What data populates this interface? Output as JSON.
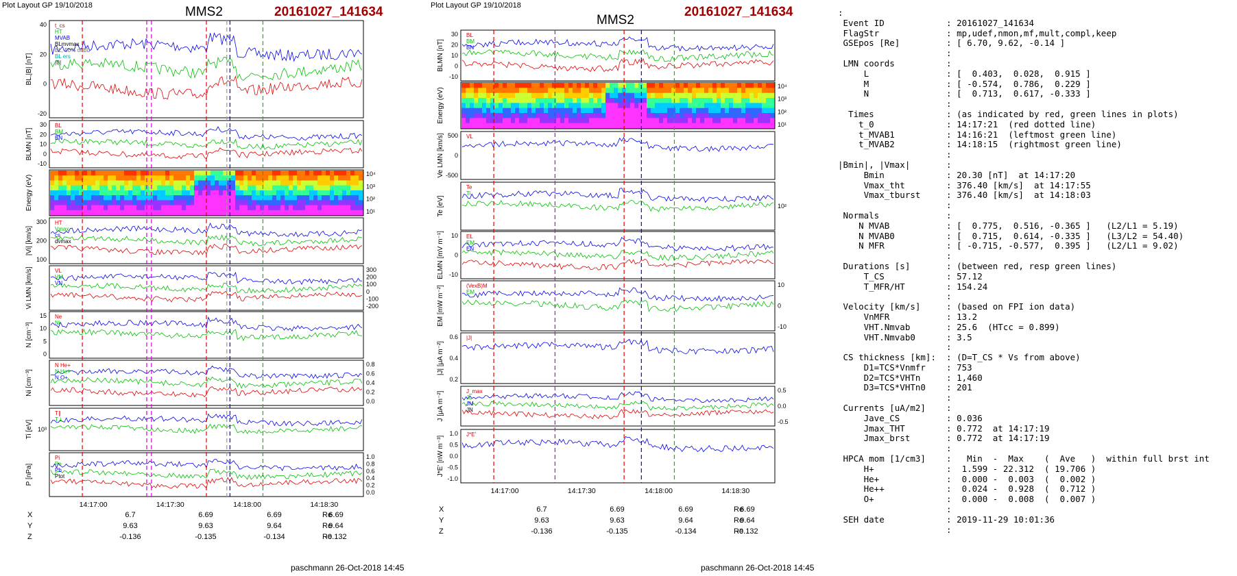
{
  "left": {
    "layout_label": "Plot Layout GP 19/10/2018",
    "spacecraft": "MMS2",
    "event": "20161027_141634",
    "footer": "paschmann 26-Oct-2018 14:45",
    "time_ticks": [
      "14:17:00",
      "14:17:30",
      "14:18:00",
      "14:18:30"
    ],
    "panels": [
      {
        "ylabel": "BL,|B| [nT]",
        "ticks_left": [
          "40",
          "20",
          "0",
          "-20"
        ],
        "legend": [
          "t_cs",
          "HT",
          "MVAB",
          "BLmvmax",
          "BL, 50% of BL",
          "BL ers",
          "|B|"
        ]
      },
      {
        "ylabel": "BLMN [nT]",
        "ticks_left": [
          "30",
          "20",
          "10",
          "0",
          "-10"
        ],
        "legend": [
          "BL",
          "BM",
          "BN"
        ]
      },
      {
        "ylabel": "Energy (eV)",
        "ticks_right": [
          "10⁴",
          "10³",
          "10²",
          "10¹"
        ]
      },
      {
        "ylabel": "|Vi| [km/s]",
        "ticks_left": [
          "300",
          "200",
          "100"
        ],
        "legend": [
          "HT",
          "Vmax",
          "cs",
          "dvmax"
        ]
      },
      {
        "ylabel": "Vi LMN [km/s]",
        "ticks_right": [
          "300",
          "200",
          "100",
          "0",
          "-100",
          "-200"
        ],
        "legend": [
          "VL",
          "VM",
          "VN"
        ]
      },
      {
        "ylabel": "N [cm⁻³]",
        "ticks_left": [
          "15",
          "10",
          "5",
          "0"
        ],
        "legend": [
          "Ne",
          "Ni"
        ]
      },
      {
        "ylabel": "Ni [cm⁻³]",
        "ticks_right": [
          "0.8",
          "0.6",
          "0.4",
          "0.2",
          "0.0"
        ],
        "legend": [
          "N He+",
          "N He+",
          "N O+"
        ]
      },
      {
        "ylabel": "Ti [eV]",
        "ticks_left": [
          "10³"
        ],
        "legend": [
          "T∥",
          "T⊥"
        ]
      },
      {
        "ylabel": "P [nPa]",
        "ticks_right": [
          "1.0",
          "0.8",
          "0.6",
          "0.4",
          "0.2",
          "0.0"
        ],
        "legend": [
          "Pi",
          "Pe",
          "Pb",
          "Ptot"
        ]
      }
    ],
    "pos": {
      "rows": [
        {
          "label": "X",
          "values": [
            "6.7",
            "6.69",
            "6.69",
            "6.69"
          ],
          "unit": "Re"
        },
        {
          "label": "Y",
          "values": [
            "9.63",
            "9.63",
            "9.64",
            "9.64"
          ],
          "unit": "Re"
        },
        {
          "label": "Z",
          "values": [
            "-0.136",
            "-0.135",
            "-0.134",
            "-0.132"
          ],
          "unit": "Re"
        }
      ]
    }
  },
  "middle": {
    "layout_label": "Plot Layout GP 19/10/2018",
    "spacecraft": "MMS2",
    "event": "20161027_141634",
    "footer": "paschmann 26-Oct-2018 14:45",
    "time_ticks": [
      "14:17:00",
      "14:17:30",
      "14:18:00",
      "14:18:30"
    ],
    "panels": [
      {
        "ylabel": "BLMN [nT]",
        "ticks_left": [
          "30",
          "20",
          "10",
          "0",
          "-10"
        ],
        "legend": [
          "BL",
          "BM",
          "BN"
        ]
      },
      {
        "ylabel": "Energy (eV)",
        "ticks_right": [
          "10⁴",
          "10³",
          "10²",
          "10¹"
        ]
      },
      {
        "ylabel": "Ve LMN [km/s]",
        "ticks_left": [
          "500",
          "0",
          "-500"
        ],
        "legend": [
          "VL"
        ]
      },
      {
        "ylabel": "Te [eV]",
        "ticks_right": [
          "10²"
        ],
        "legend": [
          "Te",
          "Ti"
        ]
      },
      {
        "ylabel": "ELMN [mV m⁻¹]",
        "ticks_left": [
          "10",
          "0",
          "-10"
        ],
        "legend": [
          "EL",
          "EM",
          "EN"
        ]
      },
      {
        "ylabel": "EM [mW m⁻²]",
        "ticks_right": [
          "10",
          "0",
          "-10"
        ],
        "legend": [
          "(VexB)M",
          "EM"
        ]
      },
      {
        "ylabel": "|J| [μA m⁻²]",
        "ticks_left": [
          "0.6",
          "0.4",
          "0.2"
        ],
        "legend": [
          "|J|"
        ]
      },
      {
        "ylabel": "J [μA m⁻²]",
        "ticks_right": [
          "0.5",
          "0.0",
          "-0.5"
        ],
        "legend": [
          "J_max",
          "JL",
          "JM",
          "JN"
        ]
      },
      {
        "ylabel": "J*E' [nW m⁻³]",
        "ticks_left": [
          "1.0",
          "0.5",
          "0.0",
          "-0.5",
          "-1.0"
        ],
        "legend": [
          "J*E'"
        ]
      }
    ],
    "pos": {
      "rows": [
        {
          "label": "X",
          "values": [
            "6.7",
            "6.69",
            "6.69",
            "6.69"
          ],
          "unit": "Re"
        },
        {
          "label": "Y",
          "values": [
            "9.63",
            "9.63",
            "9.64",
            "9.64"
          ],
          "unit": "Re"
        },
        {
          "label": "Z",
          "values": [
            "-0.136",
            "-0.135",
            "-0.134",
            "-0.132"
          ],
          "unit": "Re"
        }
      ]
    }
  },
  "info_lines": [
    ":",
    " Event ID            : 20161027_141634",
    " FlagStr             : mp,udef,nmon,mf,mult,compl,keep",
    " GSEpos [Re]         : [ 6.70, 9.62, -0.14 ]",
    "                     :",
    " LMN coords          :",
    "     L               : [  0.403,  0.028,  0.915 ]",
    "     M               : [ -0.574,  0.786,  0.229 ]",
    "     N               : [  0.713,  0.617, -0.333 ]",
    "                     :",
    "  Times              : (as indicated by red, green lines in plots)",
    "    t_0              : 14:17:21  (red dotted line)",
    "    t_MVAB1          : 14:16:21  (leftmost green line)",
    "    t_MVAB2          : 14:18:15  (rightmost green line)",
    "                     :",
    "|Bmin|, |Vmax|       :",
    "     Bmin            : 20.30 [nT]  at 14:17:20",
    "     Vmax_tht        : 376.40 [km/s]  at 14:17:55",
    "     Vmax_tburst     : 376.40 [km/s]  at 14:18:03",
    "                     :",
    " Normals             :",
    "    N MVAB           : [  0.775,  0.516, -0.365 ]   (L2/L1 = 5.19)",
    "    N MVAB0          : [  0.715,  0.614, -0.335 ]   (L3/L2 = 54.40)",
    "    N MFR            : [ -0.715, -0.577,  0.395 ]   (L2/L1 = 9.02)",
    "                     :",
    " Durations [s]       : (between red, resp green lines)",
    "     T_CS            : 57.12",
    "     T_MFR/HT        : 154.24",
    "                     :",
    " Velocity [km/s]     : (based on FPI ion data)",
    "     VnMFR           : 13.2",
    "     VHT.Nmvab       : 25.6  (HTcc = 0.899)",
    "     VHT.Nmvab0      : 3.5",
    "                     :",
    " CS thickness [km]:  : (D=T_CS * Vs from above)",
    "     D1=TCS*Vnmfr    : 753",
    "     D2=TCS*VHTn     : 1,460",
    "     D3=TCS*VHTn0    : 201",
    "                     :",
    " Currents [uA/m2]    :",
    "     Jave_CS         : 0.036",
    "     Jmax_THT        : 0.772  at 14:17:19",
    "     Jmax_brst       : 0.772  at 14:17:19",
    "                     :",
    " HPCA mom [1/cm3]    :   Min  -  Max    (  Ave   )  within full brst int",
    "     H+              :  1.599 - 22.312  ( 19.706 )",
    "     He+             :  0.000 -  0.003  (  0.002 )",
    "     He++            :  0.024 -  0.928  (  0.712 )",
    "     O+              :  0.000 -  0.008  (  0.007 )",
    "                     :",
    " SEH date            : 2019-11-29 10:01:36",
    "                     :"
  ],
  "chart_data": [
    {
      "type": "line",
      "title": "MMS2 20161027_141634 (left column)",
      "x_ticks": [
        "14:17:00",
        "14:17:30",
        "14:18:00",
        "14:18:30"
      ]
    },
    {
      "type": "line",
      "title": "MMS2 20161027_141634 (middle column)",
      "x_ticks": [
        "14:17:00",
        "14:17:30",
        "14:18:00",
        "14:18:30"
      ]
    }
  ],
  "colors": {
    "event": "#a00000",
    "red": "#e00000",
    "green": "#00c000",
    "blue": "#0000ee",
    "magenta": "#d000d0"
  }
}
